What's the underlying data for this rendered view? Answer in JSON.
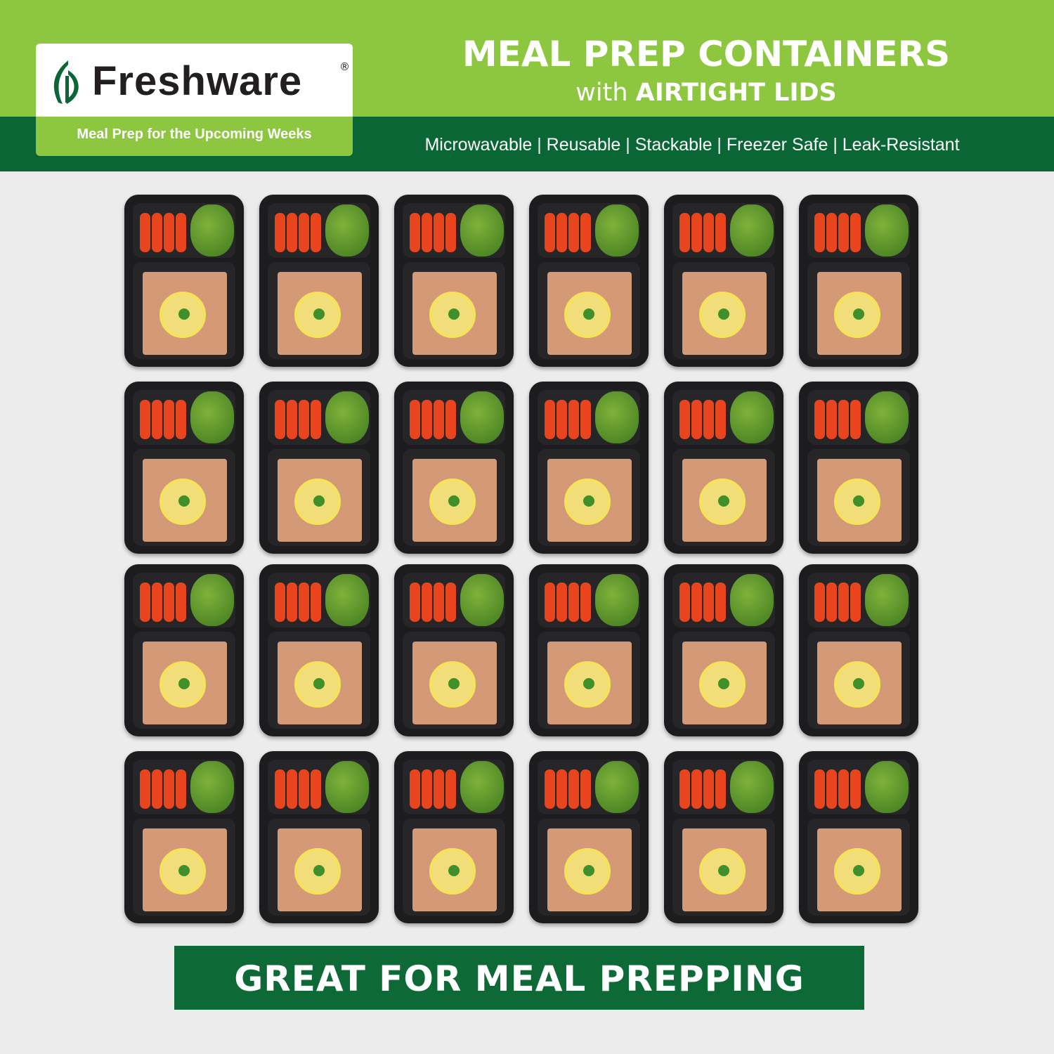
{
  "header": {
    "brand": "Freshware",
    "registered_mark": "®",
    "tagline": "Meal Prep for the Upcoming Weeks",
    "title": "MEAL PREP CONTAINERS",
    "subtitle_prefix": "with",
    "subtitle_emphasis": "AIRTIGHT LIDS",
    "features": "Microwavable | Reusable | Stackable | Freezer Safe | Leak-Resistant"
  },
  "product_grid": {
    "columns": 6,
    "rows": 4,
    "count": 24
  },
  "banner": {
    "text": "GREAT FOR MEAL PREPPING"
  },
  "colors": {
    "light_green": "#8dc63f",
    "dark_green": "#0b6636",
    "container": "#1c1c1e"
  }
}
